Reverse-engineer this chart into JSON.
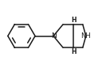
{
  "bg_color": "#ffffff",
  "line_color": "#1a1a1a",
  "line_width": 1.1,
  "font_size_N": 6.5,
  "font_size_NH": 6.0,
  "font_size_H": 5.5,
  "xlim": [
    0.0,
    10.5
  ],
  "ylim": [
    2.5,
    8.5
  ]
}
